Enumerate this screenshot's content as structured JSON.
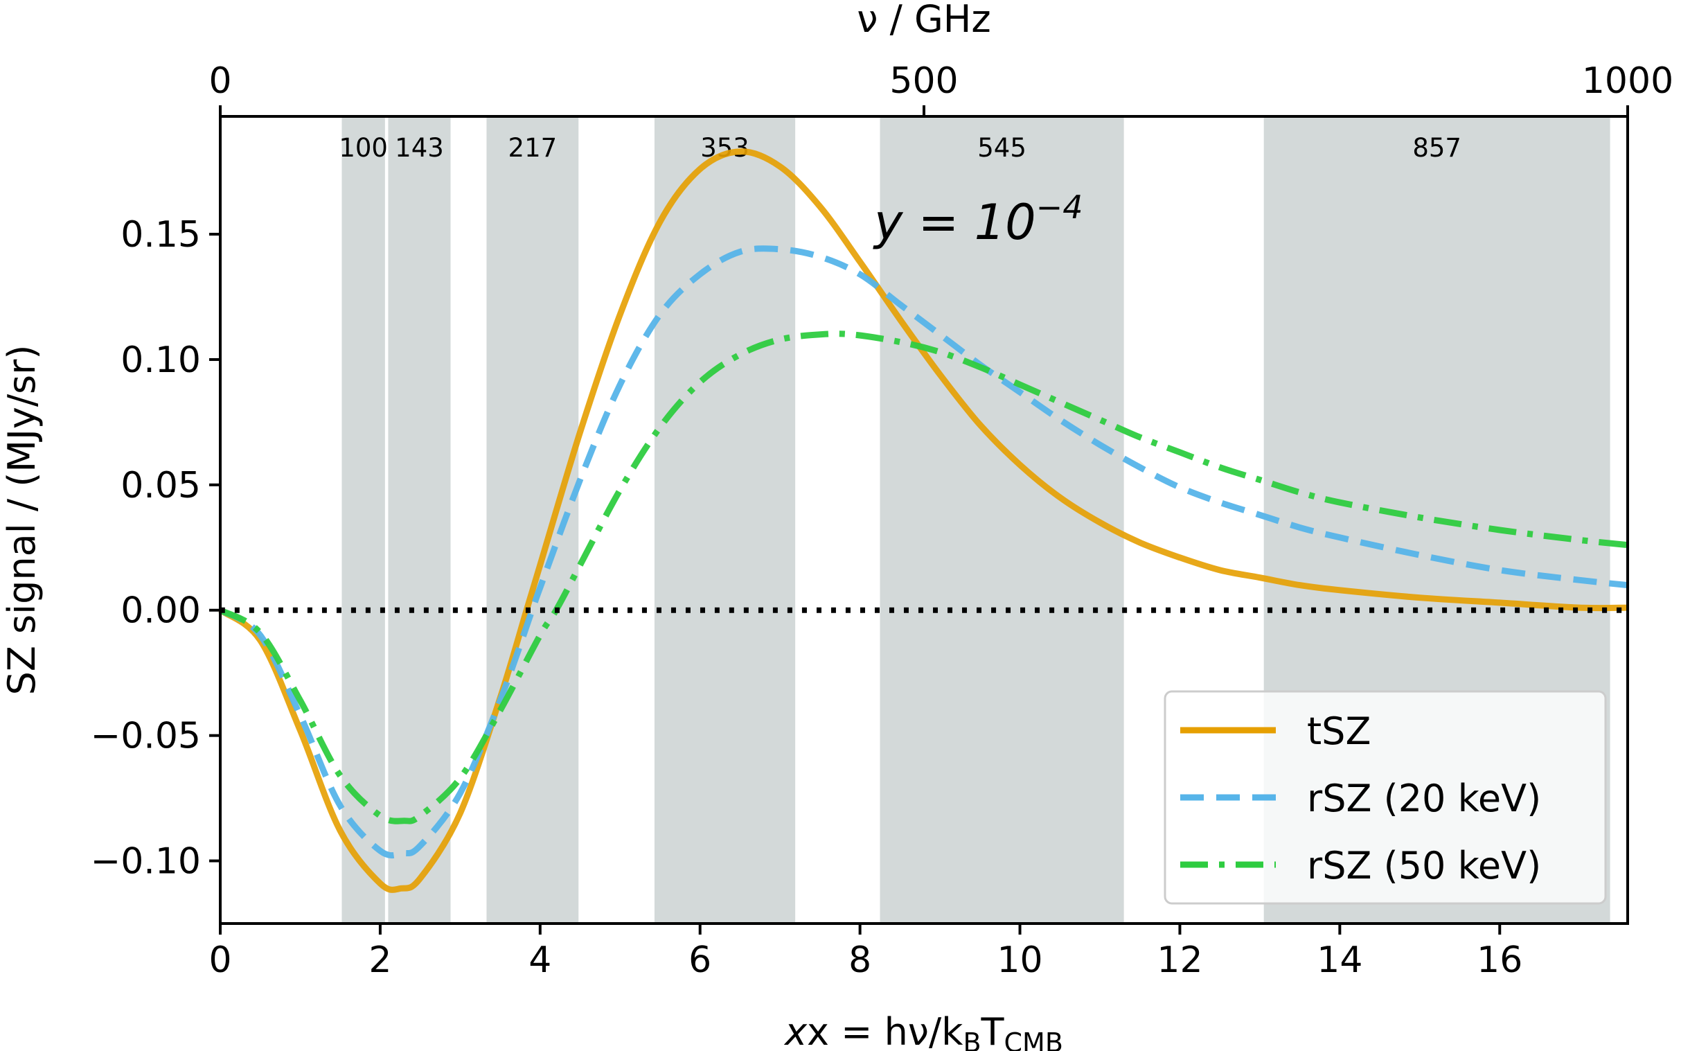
{
  "chart_data": {
    "type": "line",
    "title": "",
    "xlabel": "x = hν/k_BT_CMB",
    "xlabel_parts": {
      "main": "x = hν/k",
      "sub1": "B",
      "mid": "T",
      "sub2": "CMB"
    },
    "top_xlabel": "ν / GHz",
    "ylabel": "SZ signal / (MJy/sr)",
    "xlim": [
      0,
      17.6
    ],
    "ylim": [
      -0.125,
      0.197
    ],
    "top_xlim": [
      0,
      1000
    ],
    "x_ticks": [
      "0",
      "2",
      "4",
      "6",
      "8",
      "10",
      "12",
      "14",
      "16"
    ],
    "top_ticks": [
      "0",
      "500",
      "1000"
    ],
    "y_ticks": [
      "−0.10",
      "−0.05",
      "0.00",
      "0.05",
      "0.10",
      "0.15"
    ],
    "annotation": {
      "text": "y = 10",
      "sup": "−4"
    },
    "bands": [
      {
        "label": "100",
        "x0": 1.52,
        "x1": 2.06
      },
      {
        "label": "143",
        "x0": 2.1,
        "x1": 2.88
      },
      {
        "label": "217",
        "x0": 3.33,
        "x1": 4.48
      },
      {
        "label": "353",
        "x0": 5.43,
        "x1": 7.19
      },
      {
        "label": "545",
        "x0": 8.25,
        "x1": 11.3
      },
      {
        "label": "857",
        "x0": 13.05,
        "x1": 17.38
      }
    ],
    "grid": false,
    "legend_position": "lower-right",
    "series": [
      {
        "name": "tSZ",
        "color": "#e69f00",
        "style": "solid",
        "x": [
          0,
          0.5,
          1.0,
          1.5,
          2.0,
          2.26,
          2.5,
          3.0,
          3.5,
          3.83,
          4.0,
          4.5,
          5.0,
          5.5,
          6.0,
          6.5,
          7.0,
          7.5,
          8.0,
          8.5,
          9.0,
          9.5,
          10.0,
          10.5,
          11.0,
          11.5,
          12.0,
          12.5,
          13.0,
          13.5,
          14.0,
          15.0,
          16.0,
          17.0,
          17.6
        ],
        "values": [
          0,
          -0.012,
          -0.048,
          -0.088,
          -0.109,
          -0.111,
          -0.107,
          -0.081,
          -0.035,
          0,
          0.018,
          0.071,
          0.118,
          0.155,
          0.176,
          0.183,
          0.177,
          0.161,
          0.139,
          0.116,
          0.094,
          0.074,
          0.058,
          0.045,
          0.035,
          0.027,
          0.021,
          0.016,
          0.013,
          0.01,
          0.008,
          0.005,
          0.003,
          0.001,
          0.001
        ]
      },
      {
        "name": "rSZ (20 keV)",
        "color": "#56b4e9",
        "style": "dashed",
        "x": [
          0,
          0.5,
          1.0,
          1.5,
          2.0,
          2.28,
          2.5,
          3.0,
          3.5,
          3.9,
          4.0,
          4.5,
          5.0,
          5.5,
          6.0,
          6.5,
          7.0,
          7.5,
          8.0,
          8.5,
          9.0,
          9.5,
          10.0,
          10.5,
          11.0,
          11.5,
          12.0,
          12.5,
          13.0,
          13.5,
          14.0,
          15.0,
          16.0,
          17.0,
          17.6
        ],
        "values": [
          0,
          -0.01,
          -0.042,
          -0.078,
          -0.096,
          -0.097,
          -0.094,
          -0.073,
          -0.036,
          0,
          0.009,
          0.052,
          0.09,
          0.118,
          0.134,
          0.143,
          0.144,
          0.141,
          0.134,
          0.122,
          0.11,
          0.098,
          0.087,
          0.076,
          0.066,
          0.057,
          0.049,
          0.043,
          0.038,
          0.033,
          0.029,
          0.022,
          0.016,
          0.012,
          0.01
        ]
      },
      {
        "name": "rSZ (50 keV)",
        "color": "#2ecc40",
        "style": "dashdot",
        "x": [
          0,
          0.5,
          1.0,
          1.5,
          2.0,
          2.3,
          2.5,
          3.0,
          3.5,
          4.0,
          4.2,
          4.5,
          5.0,
          5.5,
          6.0,
          6.5,
          7.0,
          7.5,
          7.9,
          8.5,
          9.0,
          9.5,
          10.0,
          10.5,
          11.0,
          11.5,
          12.0,
          12.5,
          13.0,
          13.5,
          14.0,
          15.0,
          16.0,
          17.0,
          17.6
        ],
        "values": [
          0,
          -0.009,
          -0.036,
          -0.066,
          -0.082,
          -0.084,
          -0.082,
          -0.067,
          -0.04,
          -0.01,
          0,
          0.018,
          0.048,
          0.073,
          0.091,
          0.102,
          0.108,
          0.11,
          0.11,
          0.107,
          0.103,
          0.097,
          0.09,
          0.083,
          0.076,
          0.069,
          0.063,
          0.057,
          0.052,
          0.047,
          0.043,
          0.037,
          0.032,
          0.028,
          0.026
        ]
      },
      {
        "name": "",
        "color": "#000000",
        "style": "dotted",
        "x": [
          0,
          17.6
        ],
        "values": [
          0,
          0
        ]
      }
    ]
  }
}
